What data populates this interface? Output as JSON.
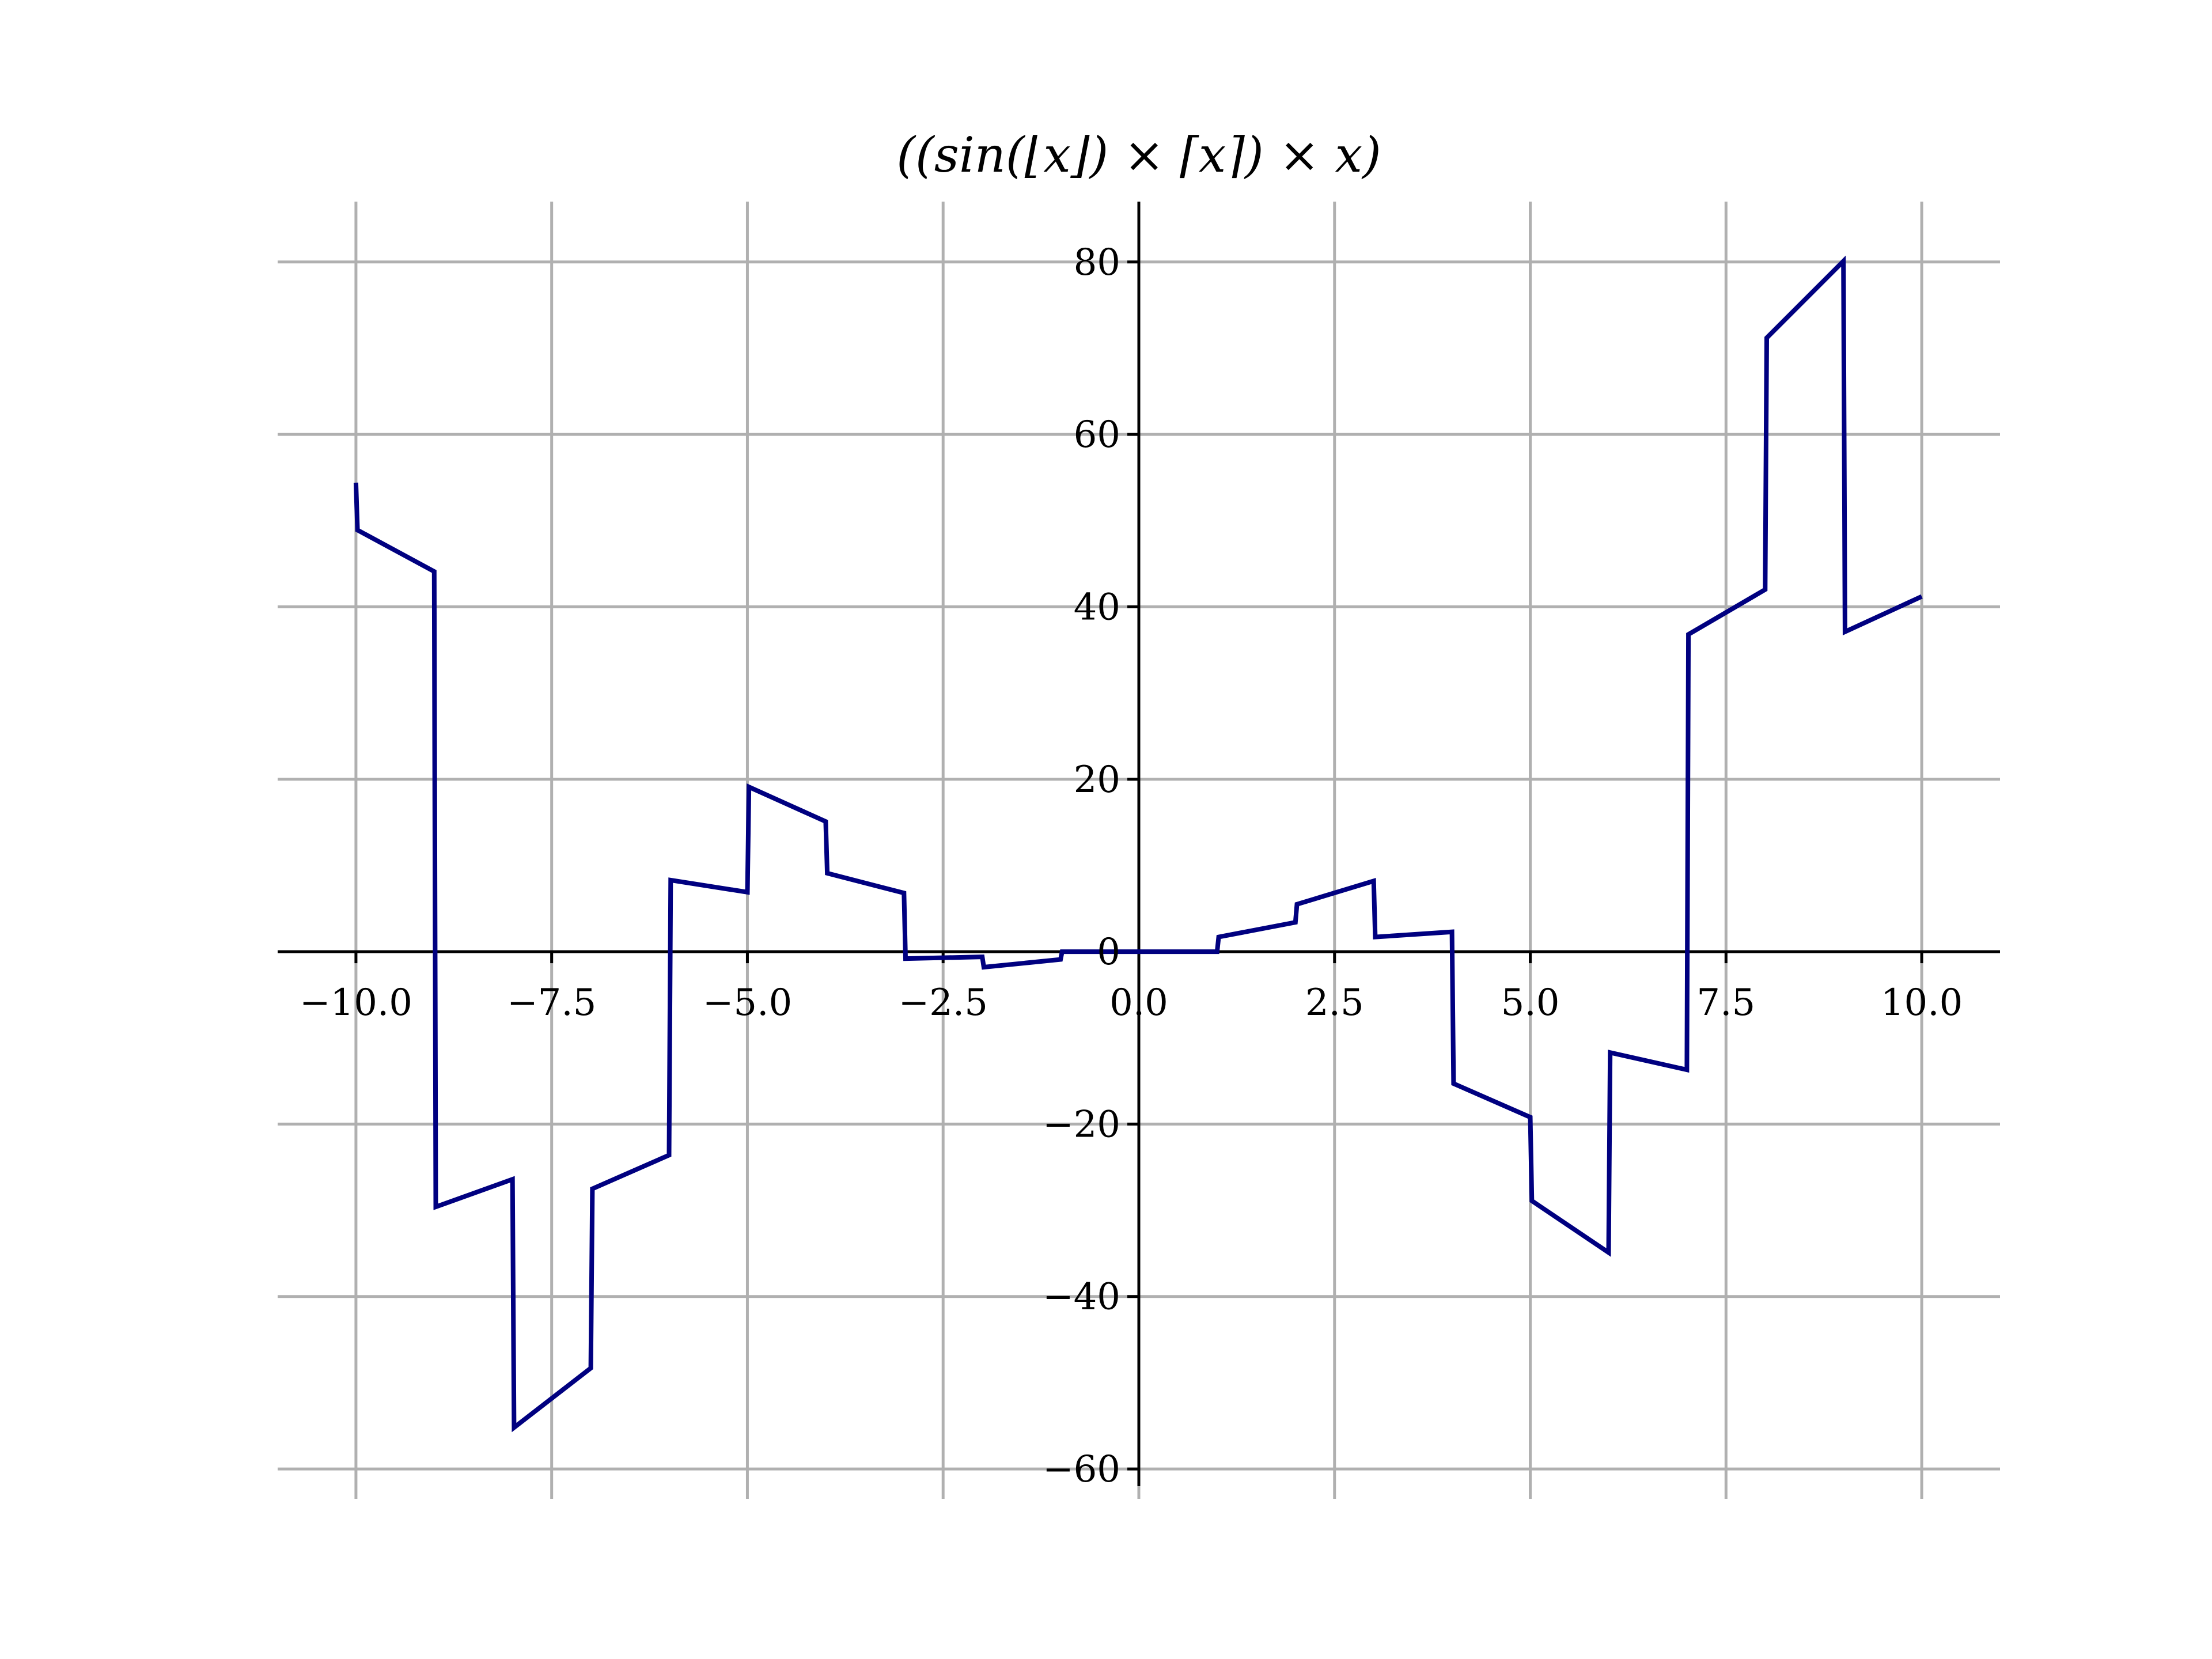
{
  "chart_data": {
    "type": "line",
    "title": "((sin(⌊x⌋) × ⌈x⌉) × x)",
    "xlabel": "",
    "ylabel": "",
    "xlim": [
      -11,
      11
    ],
    "ylim": [
      -62,
      87
    ],
    "grid": true,
    "x_ticks": [
      -10.0,
      -7.5,
      -5.0,
      -2.5,
      0.0,
      2.5,
      5.0,
      7.5,
      10.0
    ],
    "x_tick_labels": [
      "−10.0",
      "−7.5",
      "−5.0",
      "−2.5",
      "0.0",
      "2.5",
      "5.0",
      "7.5",
      "10.0"
    ],
    "y_ticks": [
      -60,
      -40,
      -20,
      0,
      20,
      40,
      60,
      80
    ],
    "y_tick_labels": [
      "−60",
      "−40",
      "−20",
      "0",
      "20",
      "40",
      "60",
      "80"
    ],
    "series": [
      {
        "color": "#000080",
        "x": [
          -10,
          -9.98,
          -9,
          -8.98,
          -8,
          -7.98,
          -7,
          -6.98,
          -6,
          -5.98,
          -5,
          -4.98,
          -4,
          -3.98,
          -3,
          -2.98,
          -2,
          -1.98,
          -1,
          -0.98,
          0,
          1,
          1.02,
          2,
          2.02,
          3,
          3.02,
          4,
          4.02,
          5,
          5.02,
          6,
          6.02,
          7,
          7.02,
          8,
          8.02,
          9,
          9.02,
          10
        ],
        "y": [
          54.4,
          48.9,
          44.1,
          -29.6,
          -26.4,
          -55.2,
          -48.3,
          -27.5,
          -23.6,
          8.3,
          6.9,
          19.1,
          15.1,
          9.1,
          6.8,
          -0.8,
          -0.6,
          -1.8,
          -0.9,
          0,
          0,
          0,
          1.7,
          3.4,
          5.5,
          8.2,
          1.7,
          2.3,
          -15.3,
          -19.2,
          -28.9,
          -34.9,
          -11.7,
          -13.7,
          36.8,
          42.0,
          71.2,
          80.1,
          37.1,
          41.2
        ]
      }
    ]
  }
}
